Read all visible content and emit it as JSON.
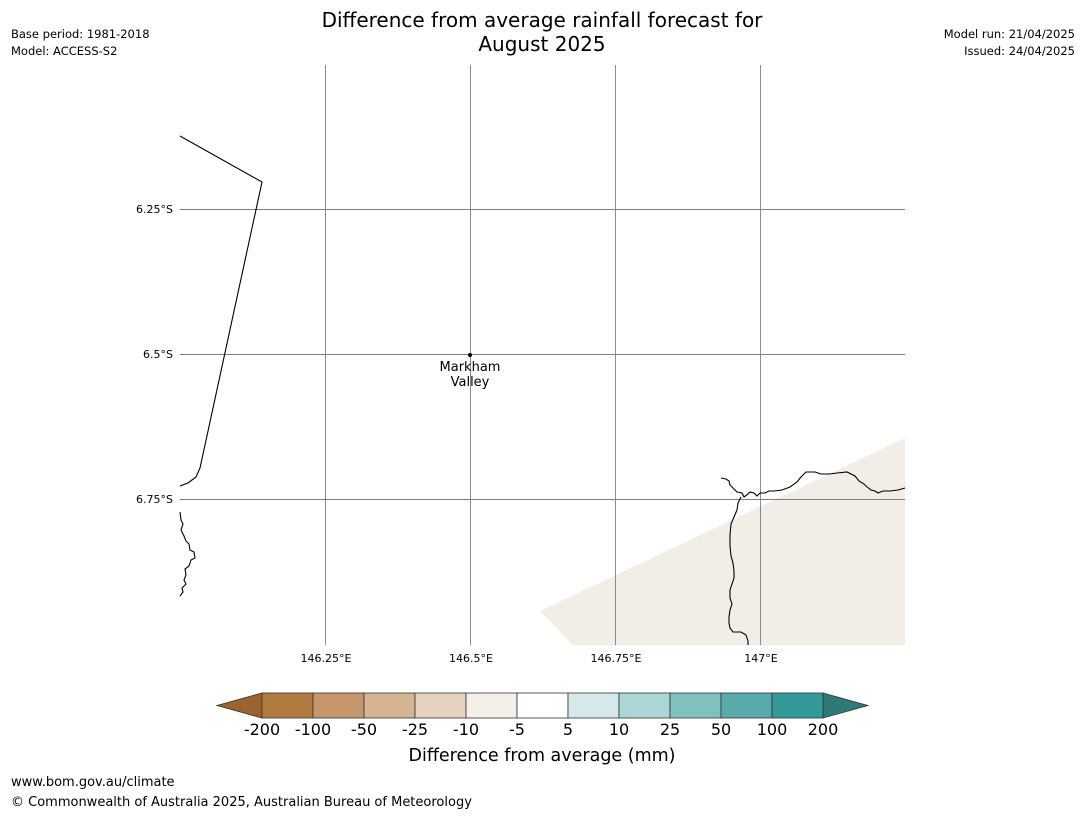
{
  "title_line1": "Difference from average rainfall forecast for",
  "title_line2": "August 2025",
  "meta_left": {
    "base_period": "Base period: 1981-2018",
    "model": "Model: ACCESS-S2"
  },
  "meta_right": {
    "model_run": "Model run: 21/04/2025",
    "issued": "Issued: 24/04/2025"
  },
  "map": {
    "lat_labels": [
      "6.25°S",
      "6.5°S",
      "6.75°S"
    ],
    "lon_labels": [
      "146.25°E",
      "146.5°E",
      "146.75°E",
      "147°E"
    ],
    "place": {
      "line1": "Markham",
      "line2": "Valley"
    },
    "light_rainfall_shading_color": "#f2ede6",
    "coastline_color": "#000000",
    "gridline_color": "#7f7f7f"
  },
  "colorbar": {
    "ticks": [
      "-200",
      "-100",
      "-50",
      "-25",
      "-10",
      "-5",
      "5",
      "10",
      "25",
      "50",
      "100",
      "200"
    ],
    "colors": [
      "#9b6330",
      "#b07a3e",
      "#c5956b",
      "#d4b492",
      "#e5d2bf",
      "#f4efe8",
      "#ffffff",
      "#d6e8e9",
      "#acd5d5",
      "#82c0be",
      "#59aaaa",
      "#339a99",
      "#2c7b78"
    ],
    "label": "Difference from average (mm)"
  },
  "footer": {
    "website": "www.bom.gov.au/climate",
    "copyright": "© Commonwealth of Australia 2025, Australian Bureau of Meteorology"
  }
}
